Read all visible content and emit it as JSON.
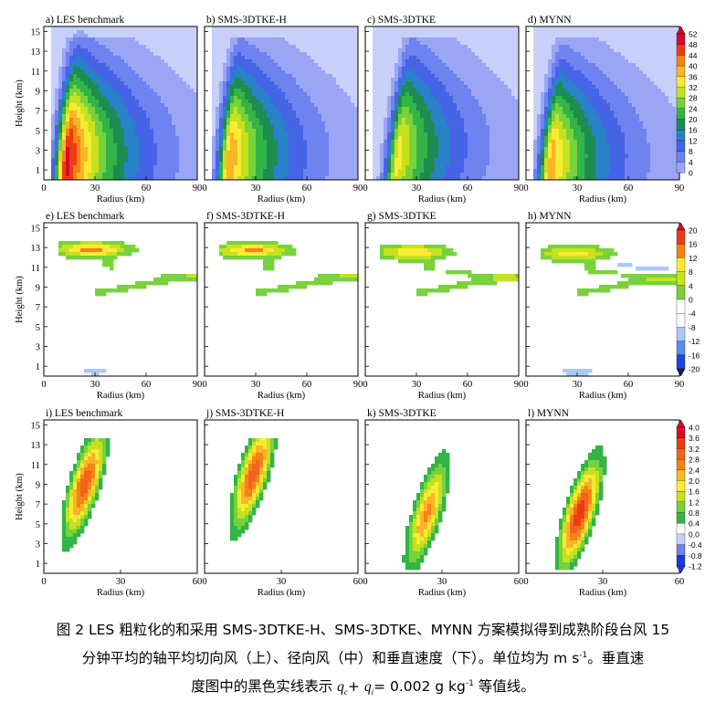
{
  "chart_data": {
    "type": "heatmap",
    "rows": [
      {
        "name": "tangential-wind",
        "x_max": 90,
        "x_ticks": [
          "0",
          "30",
          "60",
          "90"
        ],
        "y_ticks": [
          "1",
          "3",
          "5",
          "7",
          "9",
          "11",
          "13",
          "15"
        ],
        "colorbar": {
          "labels": [
            "52",
            "48",
            "44",
            "40",
            "36",
            "32",
            "28",
            "24",
            "20",
            "16",
            "12",
            "8",
            "4",
            "0"
          ],
          "colors": [
            "#d70a2d",
            "#eb3c14",
            "#f58214",
            "#fab428",
            "#faeb32",
            "#c8e11e",
            "#78d23c",
            "#32b446",
            "#1e8c50",
            "#2882c8",
            "#4664e6",
            "#6e82f0",
            "#9aa6f5",
            "#c8d0fa"
          ],
          "arrow_top": "#d70a2d"
        },
        "panels": [
          {
            "label": "a) LES benchmark",
            "peak": 54,
            "r_peak": 14,
            "z_peak": 2.0,
            "tilt": 0.5
          },
          {
            "label": "b) SMS-3DTKE-H",
            "peak": 44,
            "r_peak": 15,
            "z_peak": 2.0,
            "tilt": 0.5
          },
          {
            "label": "c) SMS-3DTKE",
            "peak": 38,
            "r_peak": 19,
            "z_peak": 2.5,
            "tilt": 0.7
          },
          {
            "label": "d) MYNN",
            "peak": 43,
            "r_peak": 15,
            "z_peak": 1.5,
            "tilt": 0.6
          }
        ]
      },
      {
        "name": "radial-wind",
        "x_max": 90,
        "x_ticks": [
          "0",
          "30",
          "60",
          "90"
        ],
        "y_ticks": [
          "1",
          "3",
          "5",
          "7",
          "9",
          "11",
          "13",
          "15"
        ],
        "colorbar": {
          "labels": [
            "20",
            "16",
            "12",
            "8",
            "4",
            "0",
            "-4",
            "-8",
            "-12",
            "-16",
            "-20"
          ],
          "colors": [
            "#eb3c14",
            "#f58214",
            "#faeb32",
            "#c8e11e",
            "#78d23c",
            "#ffffff",
            "#ffffff",
            "#aac8f5",
            "#5a8cf0",
            "#1e46dc",
            "#0a1e96"
          ],
          "arrow_top": "#d70a2d",
          "arrow_bottom": "#0a1e60"
        },
        "panels": [
          {
            "label": "e) LES benchmark",
            "out_peak": 18,
            "out_z": 12.8,
            "inflow": -5
          },
          {
            "label": "f) SMS-3DTKE-H",
            "out_peak": 17,
            "out_z": 12.7,
            "inflow": -4
          },
          {
            "label": "g) SMS-3DTKE",
            "out_peak": 15,
            "out_z": 12.5,
            "inflow": -4
          },
          {
            "label": "h) MYNN",
            "out_peak": 14,
            "out_z": 12.4,
            "inflow": -6
          }
        ]
      },
      {
        "name": "vertical-velocity",
        "x_max": 60,
        "x_ticks": [
          "0",
          "30",
          "60"
        ],
        "y_ticks": [
          "1",
          "3",
          "5",
          "7",
          "9",
          "11",
          "13",
          "15"
        ],
        "colorbar": {
          "labels": [
            "4.0",
            "3.6",
            "3.2",
            "2.8",
            "2.4",
            "2.0",
            "1.6",
            "1.2",
            "0.8",
            "0.4",
            "0.0",
            "-0.4",
            "-0.8",
            "-1.2"
          ],
          "colors": [
            "#d70a2d",
            "#eb3c14",
            "#f0641e",
            "#f58214",
            "#fab428",
            "#faeb32",
            "#c8e11e",
            "#78d23c",
            "#32b446",
            "#ffffff",
            "#c8d0fa",
            "#6e82f0",
            "#1e3cdc"
          ],
          "arrow_top": "#d70a2d",
          "arrow_bottom": "#1e3cdc"
        },
        "panels": [
          {
            "label": "i) LES benchmark",
            "peak": 3.0,
            "r_peak": 16,
            "z_peak": 9.0
          },
          {
            "label": "j) SMS-3DTKE-H",
            "peak": 3.0,
            "r_peak": 19,
            "z_peak": 10.0
          },
          {
            "label": "k) SMS-3DTKE",
            "peak": 2.4,
            "r_peak": 24,
            "z_peak": 6.0
          },
          {
            "label": "l) MYNN",
            "peak": 3.4,
            "r_peak": 21,
            "z_peak": 6.0
          }
        ]
      }
    ],
    "xlabel": "Radius (km)",
    "ylabel": "Height (km)"
  },
  "caption": {
    "line1": "图 2 LES 粗粒化的和采用 SMS-3DTKE-H、SMS-3DTKE、MYNN 方案模拟得到成熟阶段台风 15",
    "line2_a": "分钟平均的轴平均切向风（上）、径向风（中）和垂直速度（下）。单位均为 m s",
    "line2_sup": "-1",
    "line2_b": "。垂直速",
    "line3_a": "度图中的黑色实线表示 ",
    "line3_qc": "q",
    "line3_c": "c",
    "line3_plus": "+ ",
    "line3_qi": "q",
    "line3_i": "i",
    "line3_b": "= 0.002 g kg",
    "line3_sup": "-1",
    "line3_c2": " 等值线。"
  }
}
